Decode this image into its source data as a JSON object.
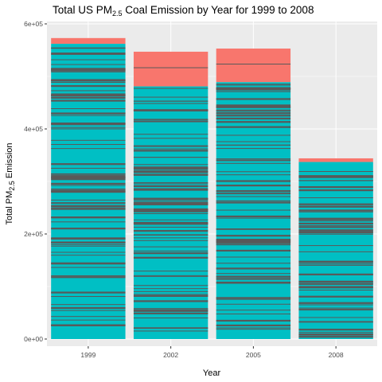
{
  "chart_data": {
    "type": "bar",
    "title": "Total US PM",
    "title_subscript": "2.5",
    "title_rest": " Coal Emission by Year for 1999 to 2008",
    "xlabel": "Year",
    "ylabel": "Total PM",
    "ylabel_subscript": "2.5",
    "ylabel_rest": " Emission",
    "categories": [
      "1999",
      "2002",
      "2005",
      "2008"
    ],
    "values": [
      573000,
      547000,
      553000,
      344000
    ],
    "lower_segment_values": [
      562000,
      481000,
      489000,
      337000
    ],
    "colors": {
      "upper": "#F8766D",
      "lower": "#00BFC4",
      "stripe": "#595959",
      "panel": "#EBEBEB"
    },
    "ylim": [
      0,
      600000
    ],
    "y_ticks": [
      0,
      200000,
      400000,
      600000
    ],
    "y_tick_labels": [
      "0e+00",
      "2e+05",
      "4e+05",
      "6e+05"
    ],
    "grid": true,
    "legend": "none"
  }
}
